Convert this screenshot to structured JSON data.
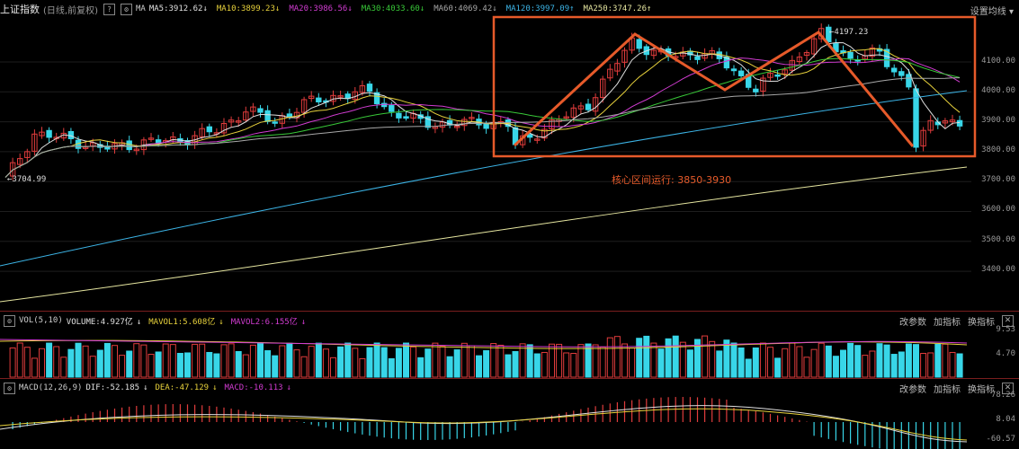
{
  "header": {
    "index_name": "上证指数",
    "period": "(日线,前复权)",
    "help_icon": "?",
    "settings_icon": "⚙",
    "ma_label": "MA",
    "indicators": [
      {
        "text": "MA5:3912.62",
        "color": "#e0e0e0",
        "arrow": "↓",
        "arrow_color": "#e0e0e0"
      },
      {
        "text": "MA10:3899.23",
        "color": "#e8d23c",
        "arrow": "↓",
        "arrow_color": "#e8d23c"
      },
      {
        "text": "MA20:3986.56",
        "color": "#d23cd2",
        "arrow": "↓",
        "arrow_color": "#d23cd2"
      },
      {
        "text": "MA30:4033.60",
        "color": "#38c838",
        "arrow": "↓",
        "arrow_color": "#38c838"
      },
      {
        "text": "MA60:4069.42",
        "color": "#a8a8a8",
        "arrow": "↓",
        "arrow_color": "#a8a8a8"
      },
      {
        "text": "MA120:3997.09",
        "color": "#3cb4e6",
        "arrow": "↑",
        "arrow_color": "#3cb4e6"
      },
      {
        "text": "MA250:3747.26",
        "color": "#e6e6a0",
        "arrow": "↑",
        "arrow_color": "#e6e6a0"
      }
    ],
    "settings_button": "设置均线",
    "settings_caret": "▾"
  },
  "price_axis": [
    "4100.00",
    "4000.00",
    "3900.00",
    "3800.00",
    "3700.00",
    "3600.00",
    "3500.00",
    "3400.00"
  ],
  "annotations": {
    "high_label": "4197.23",
    "low_label": "3704.99",
    "range_text": "核心区间运行: 3850-3930"
  },
  "vol_panel": {
    "name": "VOL(5,10)",
    "volume": "VOLUME:4.927亿",
    "volume_arrow": "↓",
    "mavol1": "MAVOL1:5.608亿",
    "mavol1_arrow": "↓",
    "mavol2": "MAVOL2:6.155亿",
    "mavol2_arrow": "↓",
    "axis": [
      "9.53",
      "4.70"
    ],
    "buttons": [
      "改参数",
      "加指标",
      "换指标"
    ],
    "close": "✕"
  },
  "macd_panel": {
    "name": "MACD(12,26,9)",
    "dif": "DIF:-52.185",
    "dif_arrow": "↓",
    "dea": "DEA:-47.129",
    "dea_arrow": "↓",
    "macd": "MACD:-10.113",
    "macd_arrow": "↓",
    "axis": [
      "78.26",
      "8.04",
      "-60.57"
    ],
    "buttons": [
      "改参数",
      "加指标",
      "换指标"
    ],
    "close": "✕"
  },
  "colors": {
    "up": "#e03c3c",
    "down": "#38d6e8",
    "highlight": "#e65a2a",
    "separator": "#7a1e1e"
  }
}
